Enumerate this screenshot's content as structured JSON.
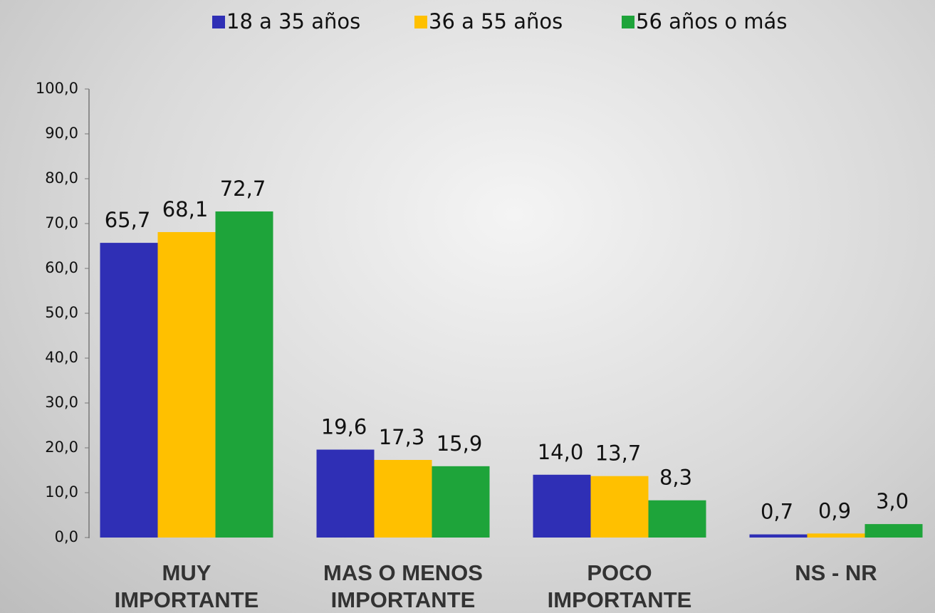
{
  "chart_data": {
    "type": "bar",
    "categories": [
      "MUY IMPORTANTE",
      "MAS O MENOS IMPORTANTE",
      "POCO IMPORTANTE",
      "NS - NR"
    ],
    "series": [
      {
        "name": "18 a 35 años",
        "color": "#2f2fb5",
        "values": [
          65.7,
          19.6,
          14.0,
          0.7
        ],
        "value_labels": [
          "65,7",
          "19,6",
          "14,0",
          "0,7"
        ]
      },
      {
        "name": "36 a 55 años",
        "color": "#ffc000",
        "values": [
          68.1,
          17.3,
          13.7,
          0.9
        ],
        "value_labels": [
          "68,1",
          "17,3",
          "13,7",
          "0,9"
        ]
      },
      {
        "name": "56 años o más",
        "color": "#1ea43a",
        "values": [
          72.7,
          15.9,
          8.3,
          3.0
        ],
        "value_labels": [
          "72,7",
          "15,9",
          "8,3",
          "3,0"
        ]
      }
    ],
    "ylim": [
      0,
      100
    ],
    "yticks": [
      {
        "value": 0,
        "label": "0,0"
      },
      {
        "value": 10,
        "label": "10,0"
      },
      {
        "value": 20,
        "label": "20,0"
      },
      {
        "value": 30,
        "label": "30,0"
      },
      {
        "value": 40,
        "label": "40,0"
      },
      {
        "value": 50,
        "label": "50,0"
      },
      {
        "value": 60,
        "label": "60,0"
      },
      {
        "value": 70,
        "label": "70,0"
      },
      {
        "value": 80,
        "label": "80,0"
      },
      {
        "value": 90,
        "label": "90,0"
      },
      {
        "value": 100,
        "label": "100,0"
      }
    ],
    "legend": "top"
  }
}
